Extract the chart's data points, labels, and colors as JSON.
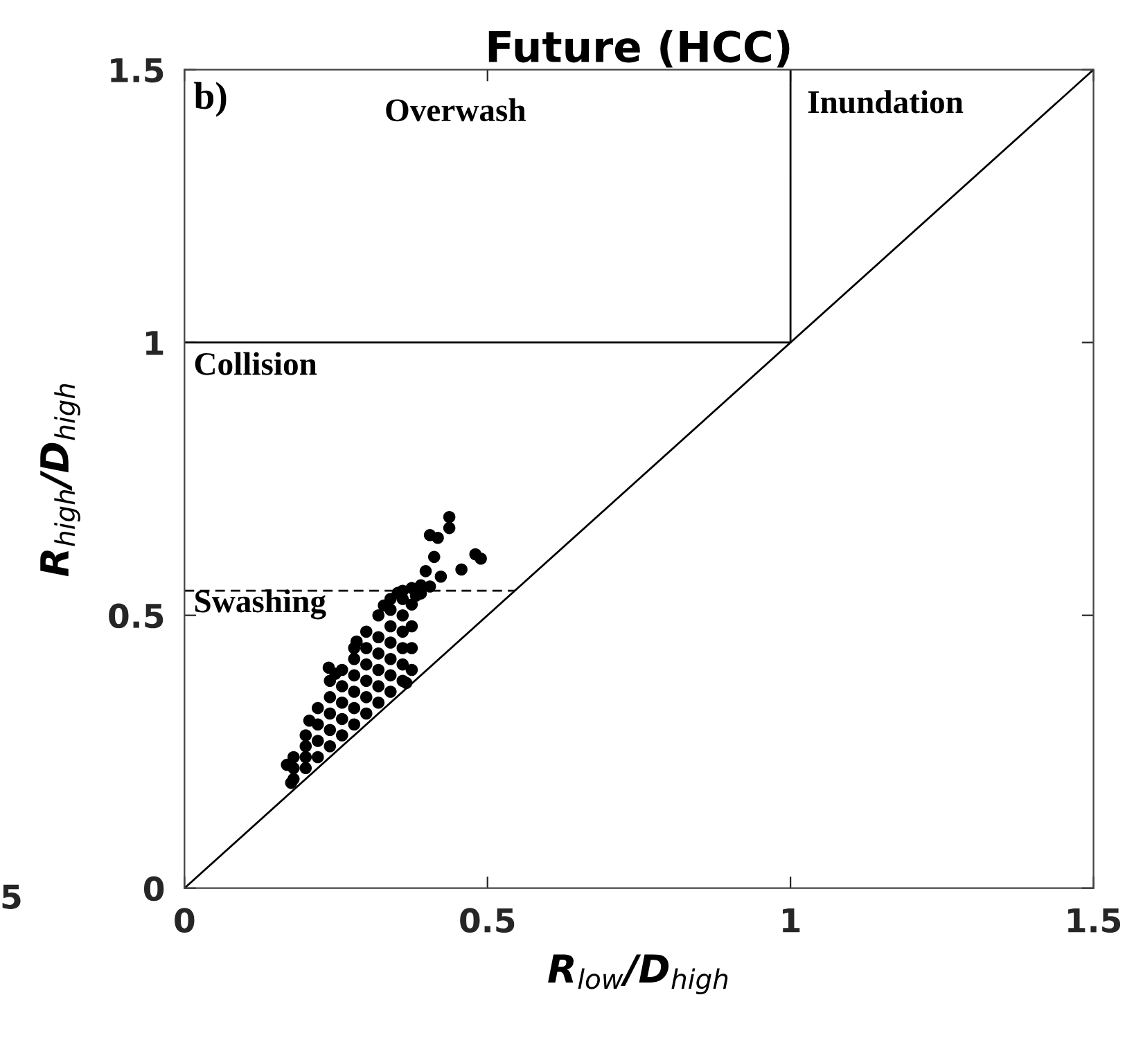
{
  "chart_data": {
    "type": "scatter",
    "title": "Future (HCC)",
    "xlabel": "R$_{low}$/D$_{high}$",
    "ylabel": "R$_{high}$/D$_{high}$",
    "xlim": [
      0,
      1.5
    ],
    "ylim": [
      0,
      1.5
    ],
    "xticks": [
      0,
      0.5,
      1,
      1.5
    ],
    "yticks": [
      0,
      0.5,
      1,
      1.5
    ],
    "grid": false,
    "legend": false,
    "annotations": [
      "b)",
      "Overwash",
      "Inundation",
      "Collision",
      "Swashing",
      "5"
    ],
    "series": [
      {
        "color": "#000000",
        "marker": "circle",
        "x": [
          0.176,
          0.169,
          0.18,
          0.18,
          0.18,
          0.2,
          0.2,
          0.2,
          0.2,
          0.206,
          0.22,
          0.22,
          0.22,
          0.22,
          0.24,
          0.24,
          0.24,
          0.24,
          0.24,
          0.26,
          0.26,
          0.26,
          0.26,
          0.26,
          0.28,
          0.28,
          0.28,
          0.28,
          0.28,
          0.28,
          0.284,
          0.3,
          0.3,
          0.3,
          0.3,
          0.3,
          0.3,
          0.32,
          0.32,
          0.32,
          0.32,
          0.32,
          0.32,
          0.329,
          0.34,
          0.34,
          0.34,
          0.34,
          0.34,
          0.34,
          0.34,
          0.352,
          0.36,
          0.36,
          0.36,
          0.36,
          0.36,
          0.36,
          0.36,
          0.366,
          0.375,
          0.375,
          0.375,
          0.375,
          0.375,
          0.382,
          0.39,
          0.39,
          0.405,
          0.437,
          0.437,
          0.405,
          0.418,
          0.412,
          0.48,
          0.489,
          0.457,
          0.398,
          0.423,
          0.238,
          0.249
        ],
        "values": [
          0.193,
          0.226,
          0.2,
          0.22,
          0.24,
          0.22,
          0.24,
          0.26,
          0.28,
          0.307,
          0.24,
          0.27,
          0.3,
          0.33,
          0.26,
          0.29,
          0.32,
          0.35,
          0.38,
          0.28,
          0.31,
          0.34,
          0.37,
          0.4,
          0.3,
          0.33,
          0.36,
          0.39,
          0.42,
          0.44,
          0.452,
          0.32,
          0.35,
          0.38,
          0.41,
          0.44,
          0.47,
          0.34,
          0.37,
          0.4,
          0.43,
          0.46,
          0.5,
          0.518,
          0.36,
          0.39,
          0.42,
          0.45,
          0.48,
          0.51,
          0.53,
          0.541,
          0.38,
          0.41,
          0.44,
          0.47,
          0.5,
          0.53,
          0.545,
          0.376,
          0.4,
          0.44,
          0.48,
          0.52,
          0.55,
          0.536,
          0.54,
          0.555,
          0.553,
          0.68,
          0.66,
          0.647,
          0.642,
          0.607,
          0.612,
          0.604,
          0.584,
          0.581,
          0.571,
          0.404,
          0.393
        ]
      },
      {
        "type": "line",
        "color": "#000000",
        "line_style": "solid",
        "x": [
          0,
          1.5
        ],
        "values": [
          0,
          1.5
        ]
      },
      {
        "type": "line",
        "color": "#000000",
        "line_style": "solid",
        "x": [
          0,
          1,
          1
        ],
        "values": [
          1,
          1,
          1.5
        ]
      },
      {
        "type": "line",
        "color": "#000000",
        "line_style": "dashed",
        "x": [
          0,
          0.545
        ],
        "values": [
          0.545,
          0.545
        ]
      }
    ]
  }
}
